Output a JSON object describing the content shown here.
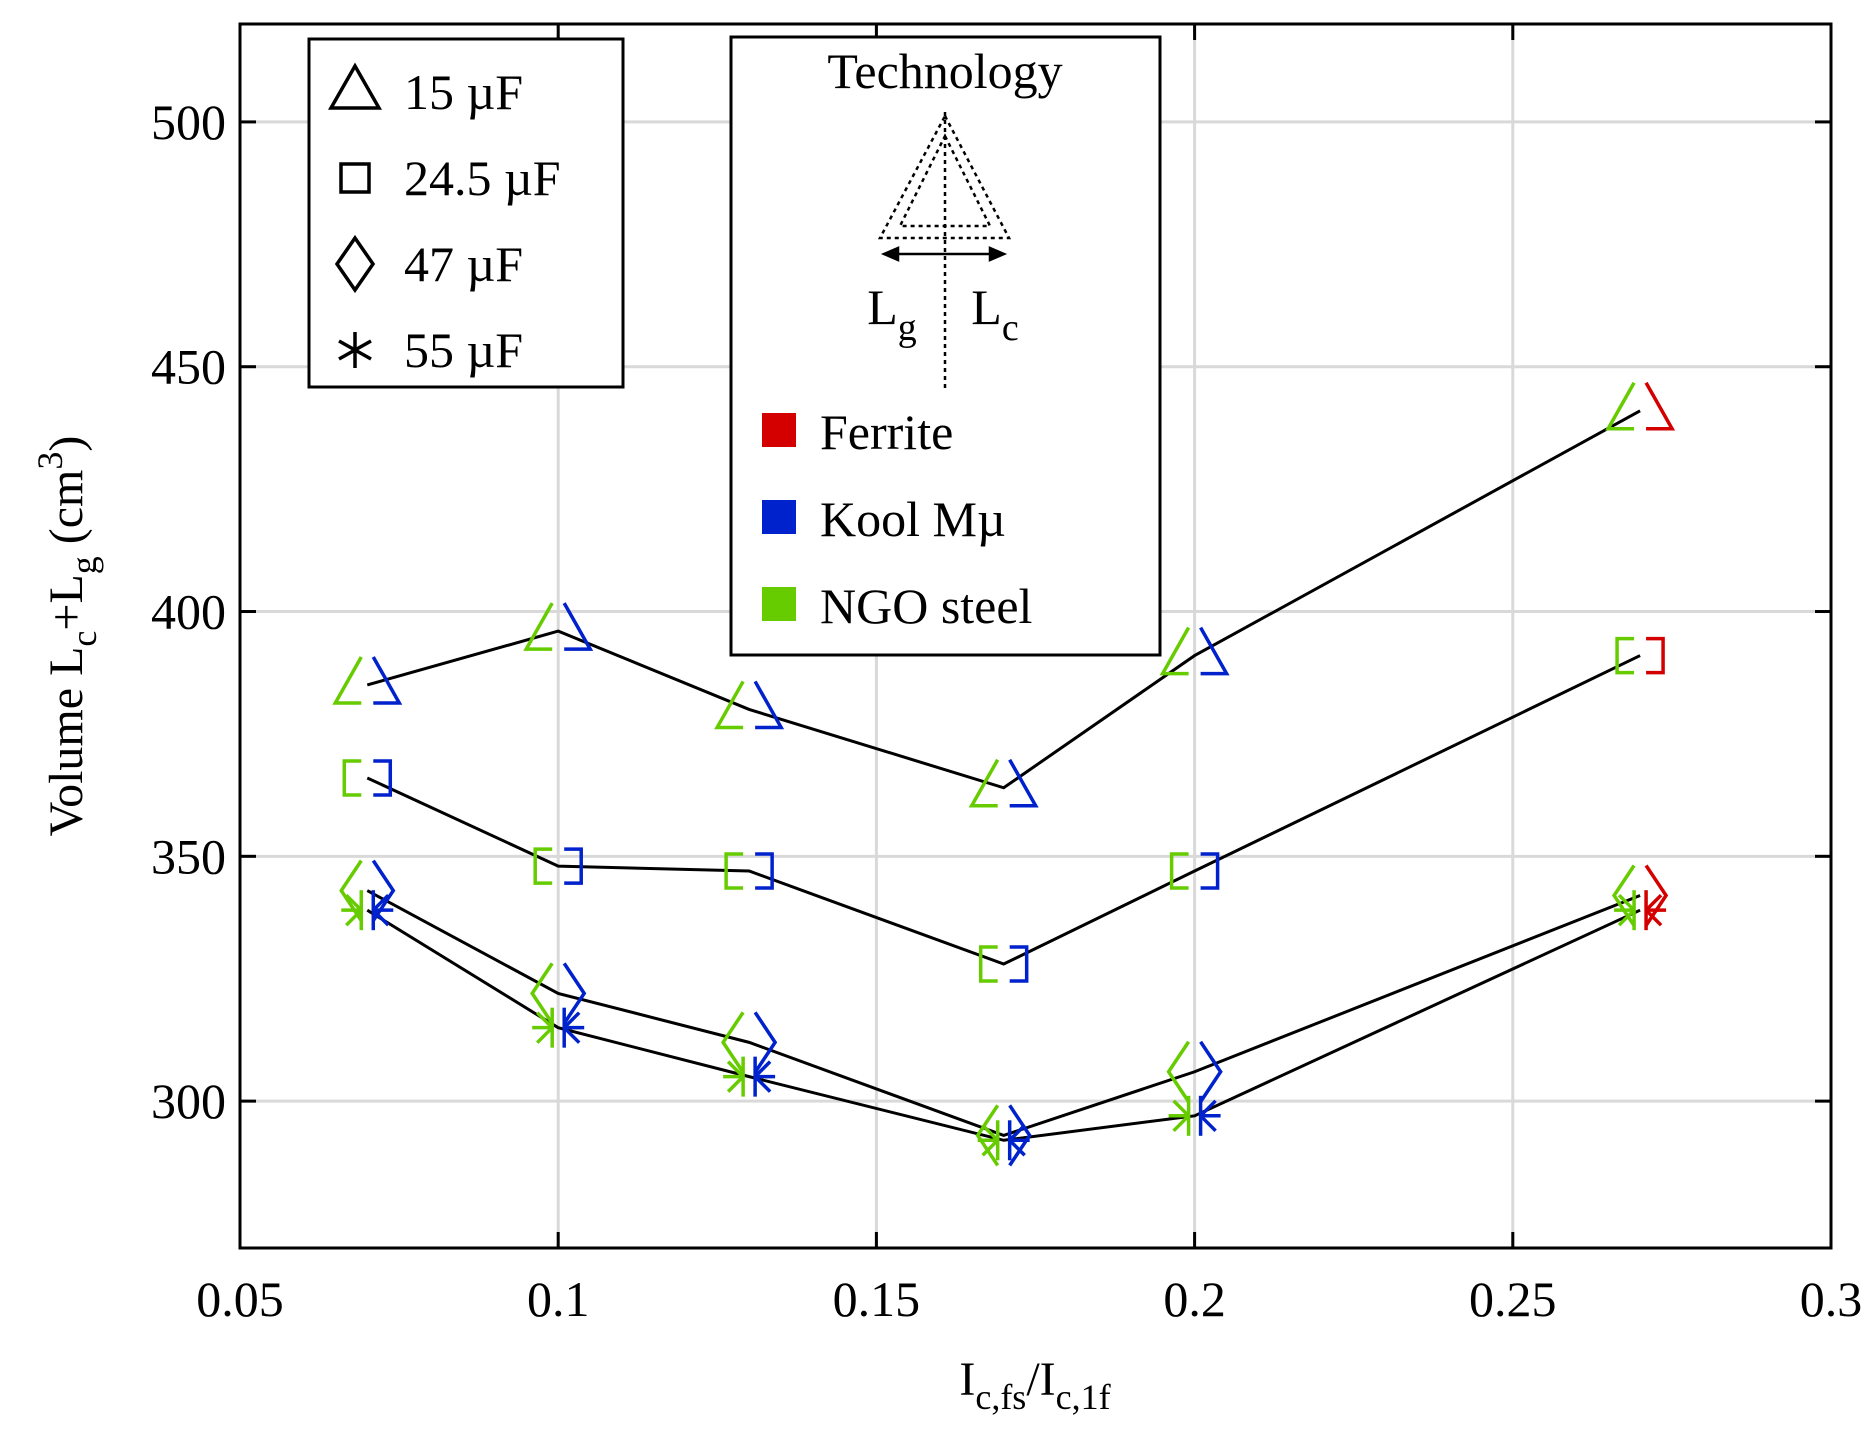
{
  "chart_data": {
    "type": "scatter",
    "xlabel": {
      "main": "I",
      "sub1": "c,fs",
      "slash": "/I",
      "sub2": "c,1f"
    },
    "ylabel": {
      "main": "Volume L",
      "sub1": "c",
      "plus": "+L",
      "sub2": "g",
      "unit_open": " (cm",
      "sup": "3",
      "unit_close": ")"
    },
    "xlim": [
      0.05,
      0.3
    ],
    "ylim": [
      270,
      520
    ],
    "xticks": [
      0.05,
      0.1,
      0.15,
      0.2,
      0.25,
      0.3
    ],
    "xtick_labels": [
      "0.05",
      "0.1",
      "0.15",
      "0.2",
      "0.25",
      "0.3"
    ],
    "yticks": [
      300,
      350,
      400,
      450,
      500
    ],
    "ytick_labels": [
      "300",
      "350",
      "400",
      "450",
      "500"
    ],
    "grid": true,
    "x": [
      0.07,
      0.1,
      0.13,
      0.17,
      0.2,
      0.27
    ],
    "series": [
      {
        "name": "15 µF",
        "marker": "triangle",
        "values": [
          385,
          396,
          380,
          364,
          391,
          441
        ],
        "left_tech": [
          "ngo",
          "ngo",
          "ngo",
          "ngo",
          "ngo",
          "ngo"
        ],
        "right_tech": [
          "koolmu",
          "koolmu",
          "koolmu",
          "koolmu",
          "koolmu",
          "ferrite"
        ]
      },
      {
        "name": "24.5 µF",
        "marker": "square",
        "values": [
          366,
          348,
          347,
          328,
          347,
          391
        ],
        "left_tech": [
          "ngo",
          "ngo",
          "ngo",
          "ngo",
          "ngo",
          "ngo"
        ],
        "right_tech": [
          "koolmu",
          "koolmu",
          "koolmu",
          "koolmu",
          "koolmu",
          "ferrite"
        ]
      },
      {
        "name": "47 µF",
        "marker": "diamond",
        "values": [
          343,
          322,
          312,
          293,
          306,
          342
        ],
        "left_tech": [
          "ngo",
          "ngo",
          "ngo",
          "ngo",
          "ngo",
          "ngo"
        ],
        "right_tech": [
          "koolmu",
          "koolmu",
          "koolmu",
          "koolmu",
          "koolmu",
          "ferrite"
        ]
      },
      {
        "name": "55 µF",
        "marker": "asterisk",
        "values": [
          339,
          315,
          305,
          292,
          297,
          339
        ],
        "left_tech": [
          "ngo",
          "ngo",
          "ngo",
          "ngo",
          "ngo",
          "ngo"
        ],
        "right_tech": [
          "koolmu",
          "koolmu",
          "koolmu",
          "koolmu",
          "koolmu",
          "ferrite"
        ]
      }
    ],
    "marker_legend": [
      {
        "marker": "triangle",
        "label": "15 µF"
      },
      {
        "marker": "square",
        "label": "24.5 µF"
      },
      {
        "marker": "diamond",
        "label": "47 µF"
      },
      {
        "marker": "asterisk",
        "label": "55 µF"
      }
    ],
    "technology_legend": {
      "title": "Technology",
      "left_label": "L",
      "left_sub": "g",
      "right_label": "L",
      "right_sub": "c",
      "entries": [
        {
          "key": "ferrite",
          "label": "Ferrite",
          "color": "#d40000"
        },
        {
          "key": "koolmu",
          "label": "Kool Mµ",
          "color": "#0022cc"
        },
        {
          "key": "ngo",
          "label": "NGO steel",
          "color": "#66cc00"
        }
      ]
    },
    "line_color": "#000000",
    "grid_color": "#d9d9d9"
  }
}
